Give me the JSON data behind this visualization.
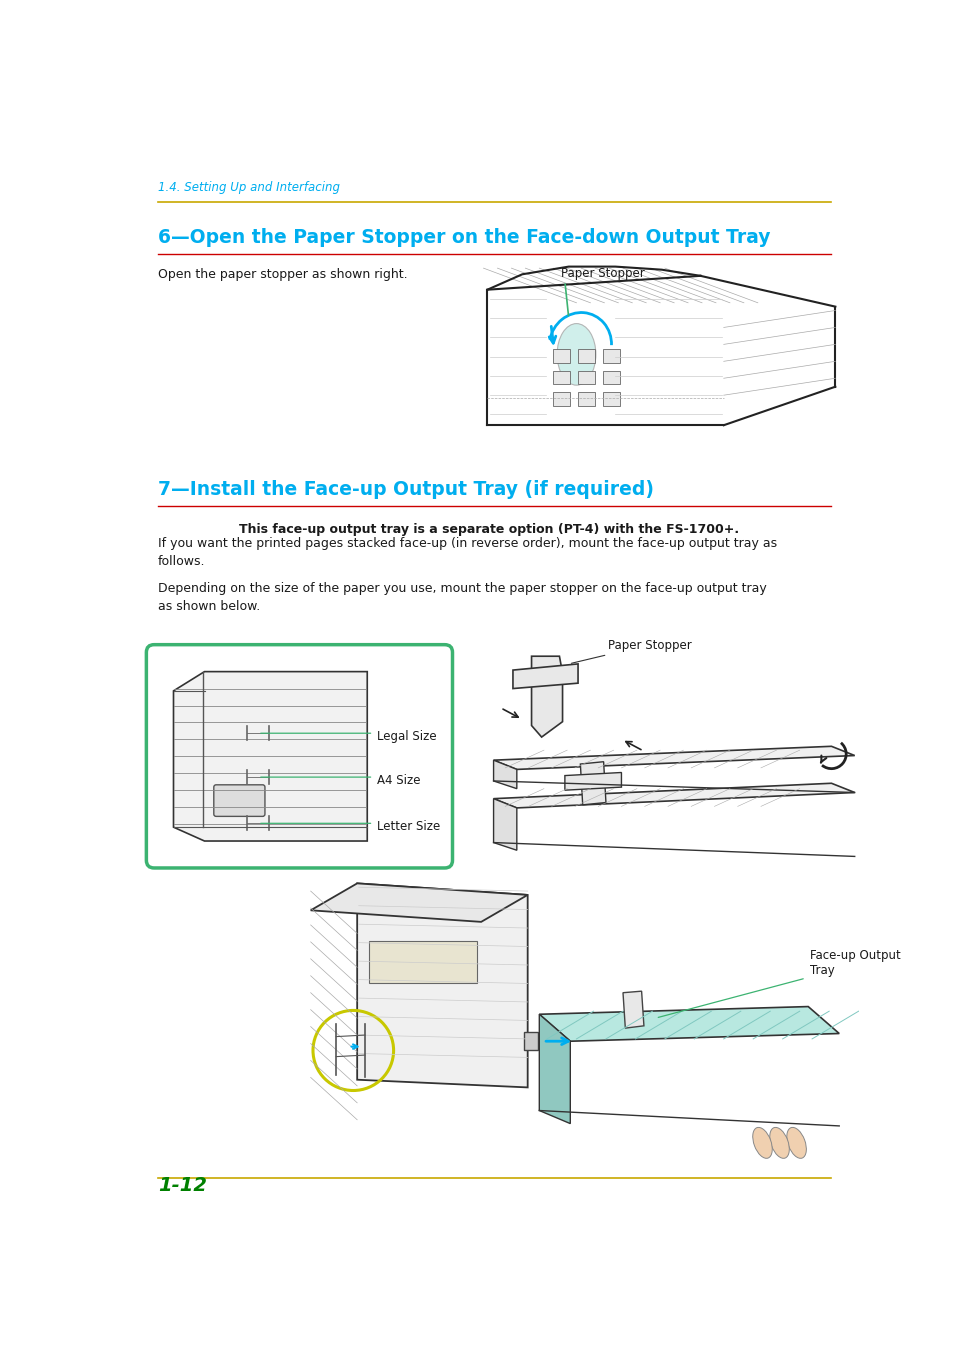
{
  "page_width": 9.54,
  "page_height": 13.49,
  "background_color": "#ffffff",
  "header_text": "1.4. Setting Up and Interfacing",
  "header_color": "#00AEEF",
  "header_line_color": "#C8A800",
  "section6_title": "6—Open the Paper Stopper on the Face-down Output Tray",
  "section6_title_color": "#00AEEF",
  "section6_underline_color": "#CC0000",
  "section6_body": "Open the paper stopper as shown right.",
  "section6_label": "Paper Stopper",
  "section7_title": "7—Install the Face-up Output Tray (if required)",
  "section7_title_color": "#00AEEF",
  "section7_underline_color": "#CC0000",
  "section7_bold": "This face-up output tray is a separate option (PT-4) with the FS-1700+.",
  "section7_body1": "If you want the printed pages stacked face-up (in reverse order), mount the face-up output tray as\nfollows.",
  "section7_body2": "Depending on the size of the paper you use, mount the paper stopper on the face-up output tray\nas shown below.",
  "diagram_box_color": "#3CB371",
  "label_legal": "Legal Size",
  "label_a4": "A4 Size",
  "label_letter": "Letter Size",
  "label_paper_stopper2": "Paper Stopper",
  "label_faceup": "Face-up Output\nTray",
  "page_number": "1-12",
  "page_number_color": "#008000",
  "footer_line_color": "#C8A800",
  "text_color": "#1a1a1a",
  "line_color": "#333333",
  "green_label_color": "#3CB371",
  "blue_arrow_color": "#00AEEF",
  "yellow_circle_color": "#C8C800"
}
